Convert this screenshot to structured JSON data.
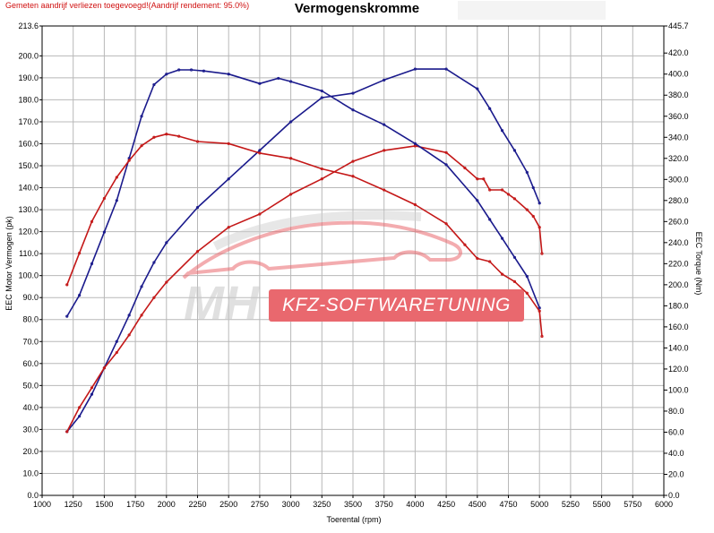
{
  "header": {
    "note": "Gemeten aandrijf verliezen toegevoegd!(Aandrijf rendement: 95.0%)",
    "title": "Vermogenskromme"
  },
  "watermark": {
    "logo_letters": "MH",
    "text": "KFZ-SOFTWARETUNING"
  },
  "colors": {
    "tuned": "#1a1a8c",
    "stock": "#c41818",
    "grid": "#b8b8b8",
    "watermark_red": "#e9686e"
  },
  "chart_data": {
    "type": "line",
    "title": "Vermogenskromme",
    "xlabel": "Toerental (rpm)",
    "ylabel_left": "EEC Motor Vermogen (pk)",
    "ylabel_right": "EEC Torque (Nm)",
    "xlim": [
      1000,
      6000
    ],
    "ylim_left": [
      0,
      213.6
    ],
    "ylim_right": [
      0,
      445.7
    ],
    "grid": true,
    "x_ticks": [
      1000,
      1250,
      1500,
      1750,
      2000,
      2250,
      2500,
      2750,
      3000,
      3250,
      3500,
      3750,
      4000,
      4250,
      4500,
      4750,
      5000,
      5250,
      5500,
      5750,
      6000
    ],
    "x_tick_labels": [
      "1000",
      "1250",
      "1500",
      "1750",
      "2000",
      "2250",
      "2500",
      "2750",
      "3000",
      "3250",
      "3500",
      "3750",
      "4000",
      "4250",
      "4500",
      "4750",
      "5000",
      "5250",
      "5500",
      "5750",
      "6000"
    ],
    "left_ticks": [
      0,
      10,
      20,
      30,
      40,
      50,
      60,
      70,
      80,
      90,
      100,
      110,
      120,
      130,
      140,
      150,
      160,
      170,
      180,
      190,
      200,
      213.6
    ],
    "left_tick_labels": [
      "0.0",
      "10.0",
      "20.0",
      "30.0",
      "40.0",
      "50.0",
      "60.0",
      "70.0",
      "80.0",
      "90.0",
      "100.0",
      "110.0",
      "120.0",
      "130.0",
      "140.0",
      "150.0",
      "160.0",
      "170.0",
      "180.0",
      "190.0",
      "200.0",
      "213.6"
    ],
    "right_ticks": [
      0,
      20,
      40,
      60,
      80,
      100,
      120,
      140,
      160,
      180,
      200,
      220,
      240,
      260,
      280,
      300,
      320,
      340,
      360,
      380,
      400,
      420,
      445.7
    ],
    "right_tick_labels": [
      "0.0",
      "20.0",
      "40.0",
      "60.0",
      "80.0",
      "100.0",
      "120.0",
      "140.0",
      "160.0",
      "180.0",
      "200.0",
      "220.0",
      "240.0",
      "260.0",
      "280.0",
      "300.0",
      "320.0",
      "340.0",
      "360.0",
      "380.0",
      "400.0",
      "420.0",
      "445.7"
    ],
    "series": [
      {
        "axis": "left",
        "color": "#1a1a8c",
        "x": [
          1200,
          1300,
          1400,
          1500,
          1600,
          1700,
          1800,
          1900,
          2000,
          2250,
          2500,
          2750,
          3000,
          3250,
          3500,
          3750,
          4000,
          4250,
          4500,
          4600,
          4700,
          4800,
          4900,
          4950,
          5000
        ],
        "y": [
          29,
          36,
          46,
          58,
          70,
          82,
          95,
          106,
          115,
          131,
          144,
          157,
          170,
          181,
          183,
          189,
          194,
          194,
          185,
          176,
          166,
          157,
          147,
          140,
          133
        ]
      },
      {
        "axis": "left",
        "color": "#c41818",
        "x": [
          1200,
          1300,
          1400,
          1500,
          1600,
          1700,
          1800,
          1900,
          2000,
          2250,
          2500,
          2750,
          3000,
          3250,
          3500,
          3750,
          4000,
          4250,
          4400,
          4500,
          4550,
          4600,
          4700,
          4750,
          4800,
          4900,
          4950,
          5000,
          5020
        ],
        "y": [
          29,
          40,
          49,
          58,
          65,
          73,
          82,
          90,
          97,
          111,
          122,
          128,
          137,
          144,
          152,
          157,
          159,
          156,
          149,
          144,
          144,
          139,
          139,
          137,
          135,
          130,
          127,
          122,
          110
        ]
      },
      {
        "axis": "right",
        "color": "#1a1a8c",
        "x": [
          1200,
          1300,
          1400,
          1500,
          1600,
          1700,
          1800,
          1900,
          2000,
          2100,
          2200,
          2300,
          2500,
          2750,
          2900,
          3000,
          3250,
          3500,
          3750,
          4000,
          4250,
          4500,
          4600,
          4700,
          4800,
          4900,
          5000
        ],
        "y": [
          170,
          190,
          220,
          250,
          280,
          320,
          360,
          390,
          400,
          404,
          404,
          403,
          400,
          391,
          396,
          393,
          384,
          366,
          352,
          334,
          314,
          280,
          262,
          244,
          226,
          208,
          178
        ]
      },
      {
        "axis": "right",
        "color": "#c41818",
        "x": [
          1200,
          1300,
          1400,
          1500,
          1600,
          1700,
          1800,
          1900,
          2000,
          2100,
          2250,
          2500,
          2750,
          3000,
          3250,
          3500,
          3750,
          4000,
          4250,
          4400,
          4500,
          4600,
          4700,
          4800,
          4900,
          5000,
          5020
        ],
        "y": [
          200,
          230,
          260,
          282,
          302,
          318,
          332,
          340,
          343,
          341,
          336,
          334,
          325,
          320,
          310,
          303,
          290,
          276,
          258,
          238,
          225,
          222,
          210,
          203,
          192,
          175,
          151
        ]
      }
    ]
  }
}
